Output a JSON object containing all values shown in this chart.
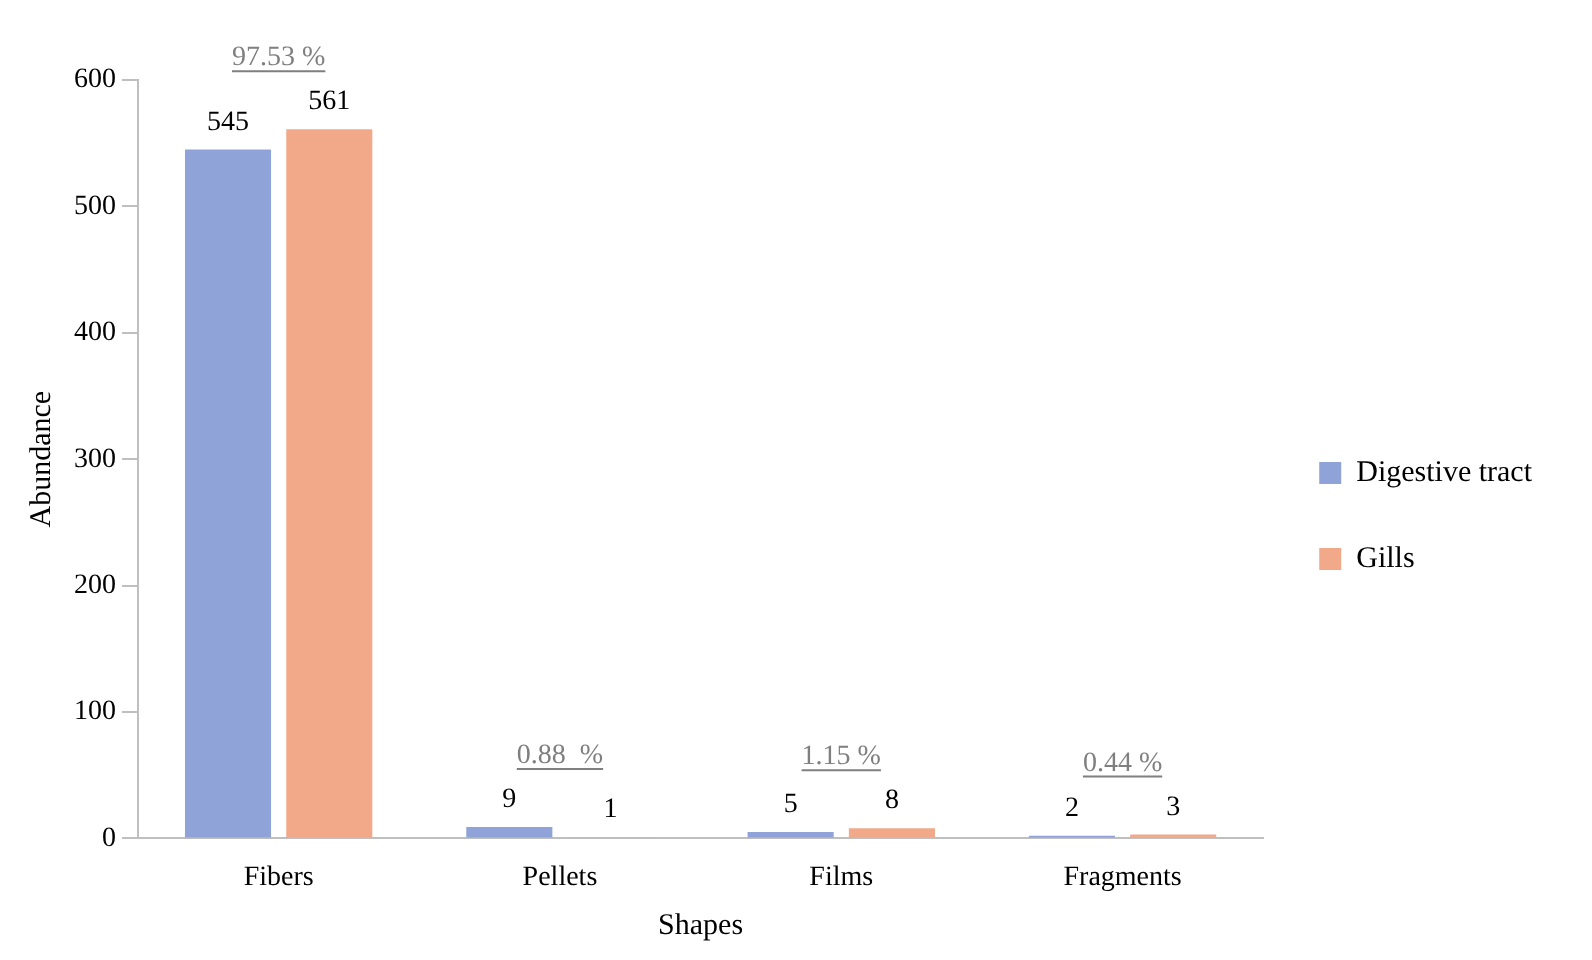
{
  "chart_data": {
    "type": "bar",
    "xlabel": "Shapes",
    "ylabel": "Abundance",
    "categories": [
      "Fibers",
      "Pellets",
      "Films",
      "Fragments"
    ],
    "series": [
      {
        "name": "Digestive tract",
        "color": "#8fa3d9",
        "values": [
          545,
          9,
          5,
          2
        ]
      },
      {
        "name": "Gills",
        "color": "#f2a98a",
        "values": [
          561,
          1,
          8,
          3
        ]
      }
    ],
    "ylim": [
      0,
      600
    ],
    "yticks": [
      0,
      100,
      200,
      300,
      400,
      500,
      600
    ],
    "grid": false,
    "legend": "right",
    "data_labels": true,
    "annotations": [
      "97.53 %",
      "0.88  %",
      "1.15 %",
      "0.44 %"
    ]
  }
}
